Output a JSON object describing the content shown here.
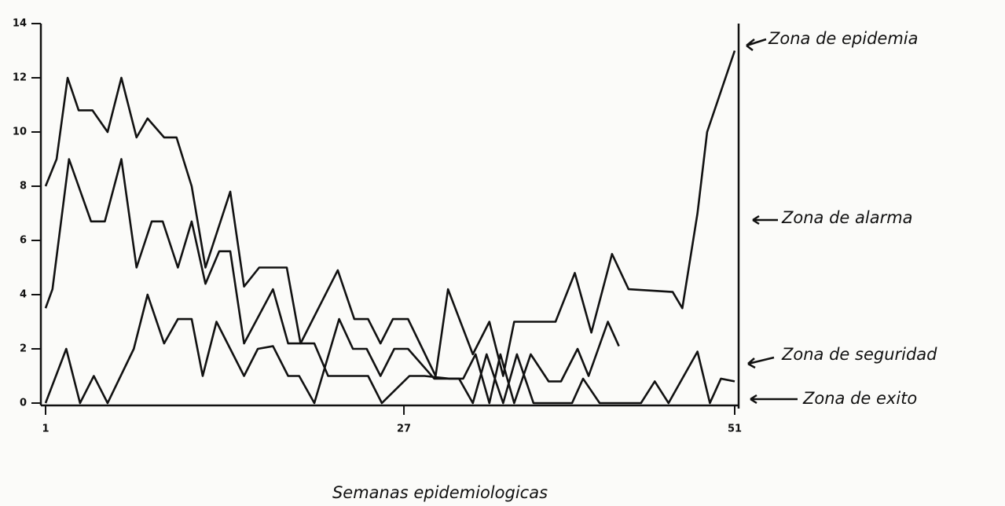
{
  "chart_data": {
    "type": "line",
    "x_label": "Semanas epidemiologicas",
    "annotations": [
      "Zona de epidemia",
      "Zona de alarma",
      "Zona de seguridad",
      "Zona de exito"
    ],
    "xlim": [
      1,
      51
    ],
    "xticks": [
      1,
      27,
      51
    ],
    "ylim": [
      0,
      14
    ],
    "yticks": [
      0,
      2,
      4,
      6,
      8,
      10,
      12,
      14
    ],
    "series": [
      {
        "color": "#111111",
        "x": [
          1,
          1.8,
          2.6,
          3.4,
          4.4,
          5.5,
          6.5,
          7.6,
          8.4,
          9.6,
          10.5,
          11.6,
          12.6,
          14.4,
          15.4,
          16.5,
          18.5,
          19.5,
          22.2,
          23.4,
          24.4,
          25.3,
          26.2,
          27.3,
          29.3,
          30.2,
          32,
          33.2,
          34.2,
          35,
          38,
          39.4,
          40.6,
          42.1,
          43.3,
          46.5,
          47.2,
          48.3,
          49,
          51
        ],
        "values": [
          8,
          9,
          12,
          10.8,
          10.8,
          10,
          12,
          9.8,
          10.5,
          9.8,
          9.8,
          8,
          5,
          7.8,
          4.3,
          5,
          5,
          2.2,
          4.9,
          3.1,
          3.1,
          2.2,
          3.1,
          3.1,
          1,
          4.2,
          1.8,
          3,
          1,
          3,
          3,
          4.8,
          2.6,
          5.5,
          4.2,
          4.1,
          3.5,
          7,
          10,
          13
        ]
      },
      {
        "color": "#111111",
        "x": [
          1,
          1.5,
          2.7,
          4.3,
          5.3,
          6.5,
          7.6,
          8.7,
          9.5,
          10.6,
          11.6,
          12.6,
          13.6,
          14.4,
          15.4,
          17.5,
          18.6,
          20.5,
          21.5,
          24.4,
          25.4,
          27.4,
          28.5,
          30.3,
          31.3,
          32.2,
          33.2,
          34,
          35,
          36.2,
          37.5,
          38.4,
          39.6,
          40.4,
          41.8,
          42.6
        ],
        "values": [
          3.5,
          4.2,
          9,
          6.7,
          6.7,
          9,
          5,
          6.7,
          6.7,
          5,
          6.7,
          4.4,
          5.6,
          5.6,
          2.2,
          4.2,
          2.2,
          2.2,
          1,
          1,
          0,
          1,
          1,
          0.9,
          0.9,
          1.8,
          0,
          1.8,
          0,
          1.8,
          0.8,
          0.8,
          2,
          1,
          3,
          2.1
        ]
      },
      {
        "color": "#111111",
        "x": [
          1,
          2.5,
          3.5,
          4.5,
          5.5,
          7.4,
          8.4,
          9.6,
          10.6,
          11.6,
          12.4,
          13.4,
          14.4,
          15.4,
          16.4,
          17.5,
          18.6,
          19.4,
          20.5,
          22.3,
          23.3,
          24.3,
          25.3,
          26.3,
          27.3,
          29.2,
          31,
          32,
          33,
          34.2,
          35.2,
          36.4,
          39.2,
          40,
          41.2,
          44.2,
          45.2,
          46.2,
          48.3,
          49.2,
          50,
          51
        ],
        "values": [
          0,
          2,
          0,
          1,
          0,
          2,
          4,
          2.2,
          3.1,
          3.1,
          1,
          3,
          2,
          1,
          2,
          2.1,
          1,
          1,
          0,
          3.1,
          2,
          2,
          1,
          2,
          2,
          0.9,
          0.9,
          0,
          1.8,
          0,
          1.8,
          0,
          0,
          0.9,
          0,
          0,
          0.8,
          0,
          1.9,
          0,
          0.9,
          0.8
        ]
      }
    ]
  }
}
